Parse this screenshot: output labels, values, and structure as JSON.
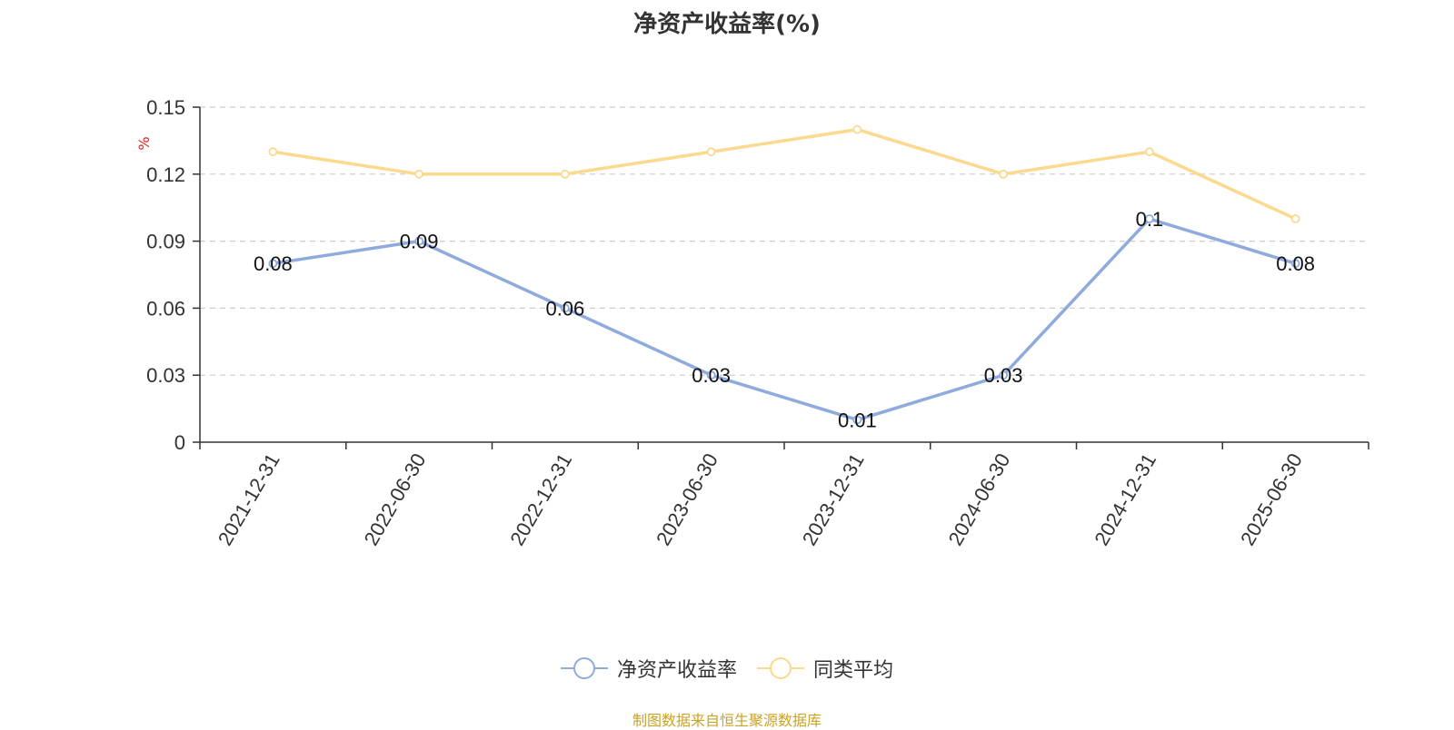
{
  "chart_data": {
    "type": "line",
    "title": "净资产收益率(%)",
    "ylabel": "%",
    "xlabel": "",
    "categories": [
      "2021-12-31",
      "2022-06-30",
      "2022-12-31",
      "2023-06-30",
      "2023-12-31",
      "2024-06-30",
      "2024-12-31",
      "2025-06-30"
    ],
    "ylim": [
      0,
      0.15
    ],
    "yticks": [
      "0",
      "0.03",
      "0.06",
      "0.09",
      "0.12",
      "0.15"
    ],
    "grid": true,
    "legend_position": "bottom-center",
    "series": [
      {
        "name": "净资产收益率",
        "color": "#8faadc",
        "values": [
          0.08,
          0.09,
          0.06,
          0.03,
          0.01,
          0.03,
          0.1,
          0.08
        ],
        "labels": [
          "0.08",
          "0.09",
          "0.06",
          "0.03",
          "0.01",
          "0.03",
          "0.1",
          "0.08"
        ]
      },
      {
        "name": "同类平均",
        "color": "#fbd98e",
        "values": [
          0.13,
          0.12,
          0.12,
          0.13,
          0.14,
          0.12,
          0.13,
          0.1
        ]
      }
    ]
  },
  "source": "制图数据来自恒生聚源数据库"
}
